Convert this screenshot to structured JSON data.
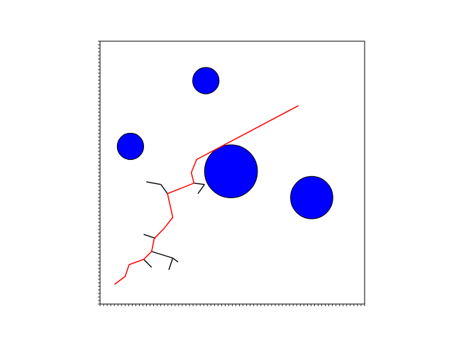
{
  "chart_data": {
    "type": "scatter",
    "title": "",
    "xlabel": "",
    "ylabel": "",
    "xlim": [
      0,
      100
    ],
    "ylim": [
      0,
      100
    ],
    "grid": false,
    "minor_ticks": 74,
    "colors": {
      "obstacle_fill": "#0000ff",
      "obstacle_edge": "#000000",
      "tree_edge": "#000000",
      "path": "#ff0000",
      "frame": "#000000"
    },
    "obstacles": [
      {
        "x": 40.0,
        "y": 85.0,
        "r": 5.0
      },
      {
        "x": 11.5,
        "y": 60.0,
        "r": 5.0
      },
      {
        "x": 49.5,
        "y": 50.5,
        "r": 10.0
      },
      {
        "x": 80.0,
        "y": 40.5,
        "r": 8.0
      }
    ],
    "tree_edges": [
      [
        [
          17.5,
          46.5
        ],
        [
          23.0,
          45.5
        ]
      ],
      [
        [
          23.0,
          45.5
        ],
        [
          25.5,
          42.0
        ]
      ],
      [
        [
          35.5,
          46.0
        ],
        [
          39.5,
          45.5
        ]
      ],
      [
        [
          39.5,
          45.5
        ],
        [
          37.0,
          42.0
        ]
      ],
      [
        [
          16.5,
          26.5
        ],
        [
          21.0,
          25.0
        ]
      ],
      [
        [
          19.5,
          20.0
        ],
        [
          27.5,
          17.5
        ]
      ],
      [
        [
          27.5,
          17.5
        ],
        [
          29.5,
          16.0
        ]
      ],
      [
        [
          27.5,
          17.5
        ],
        [
          26.0,
          13.0
        ]
      ],
      [
        [
          16.5,
          17.0
        ],
        [
          19.5,
          14.0
        ]
      ]
    ],
    "path": [
      [
        5.5,
        7.5
      ],
      [
        9.5,
        10.5
      ],
      [
        11.0,
        15.0
      ],
      [
        16.5,
        17.0
      ],
      [
        19.5,
        20.0
      ],
      [
        20.5,
        25.0
      ],
      [
        24.0,
        28.5
      ],
      [
        27.5,
        33.0
      ],
      [
        25.5,
        42.0
      ],
      [
        35.5,
        46.0
      ],
      [
        34.5,
        50.0
      ],
      [
        36.5,
        55.0
      ],
      [
        75.0,
        75.5
      ]
    ]
  }
}
